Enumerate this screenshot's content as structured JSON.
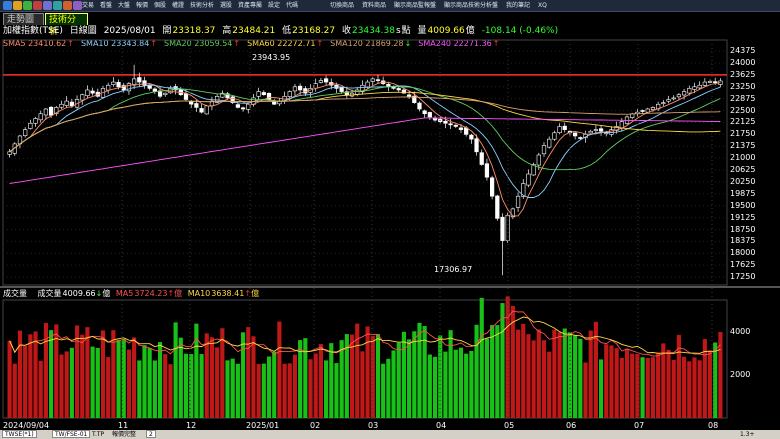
{
  "toolbar": {
    "menu": [
      "交易",
      "看盤",
      "大盤",
      "報價",
      "個股",
      "權證",
      "技術分析",
      "選股",
      "資產專屬",
      "設定",
      "代碼"
    ],
    "right_menu": [
      "切換商品",
      "資料商品",
      "顯示商品監報盤",
      "顯示商品技術分析盤",
      "我的筆記",
      "XQ"
    ]
  },
  "tabs": {
    "trend": "走勢圖",
    "technical": "技術分析"
  },
  "info": {
    "name": "加權指數(TSE)",
    "period": "日線圖",
    "date": "2025/08/01",
    "open_label": "開",
    "open": "23318.37",
    "high_label": "高",
    "high": "23484.21",
    "low_label": "低",
    "low": "23168.27",
    "close_label": "收",
    "close": "23434.38",
    "s": "s",
    "unit": "點",
    "vol_label": "量",
    "volume": "4009.66",
    "vol_unit": "億",
    "change": "-108.14 (-0.46%)"
  },
  "sma": [
    {
      "label": "SMA5",
      "value": "23410.62",
      "arrow": "↑",
      "arrow_color": "#ff3030",
      "color": "#ff8c6c"
    },
    {
      "label": "SMA10",
      "value": "23343.84",
      "arrow": "↑",
      "arrow_color": "#ff3030",
      "color": "#8ccfff"
    },
    {
      "label": "SMA20",
      "value": "23059.54",
      "arrow": "↑",
      "arrow_color": "#ff3030",
      "color": "#5fd05f"
    },
    {
      "label": "SMA60",
      "value": "22272.71",
      "arrow": "↑",
      "arrow_color": "#ff3030",
      "color": "#ffd740"
    },
    {
      "label": "SMA120",
      "value": "21869.28",
      "arrow": "↓",
      "arrow_color": "#30ff30",
      "color": "#d8a070"
    },
    {
      "label": "SMA240",
      "value": "22271.36",
      "arrow": "↑",
      "arrow_color": "#ff3030",
      "color": "#ff55ff"
    }
  ],
  "price_axis": [
    "24375",
    "24000",
    "23625",
    "23250",
    "22875",
    "22500",
    "22125",
    "21750",
    "21375",
    "21000",
    "20625",
    "20250",
    "19875",
    "19500",
    "19125",
    "18750",
    "18375",
    "18000",
    "17625",
    "17250"
  ],
  "annotations": {
    "high": "23943.95",
    "low": "17306.97"
  },
  "volume_legend": {
    "title": "成交量",
    "label": "成交量",
    "value": "4009.66",
    "arrow": "↓",
    "unit": "億",
    "ma5_label": "MA5",
    "ma5": "3724.23",
    "ma5_arrow": "↑",
    "ma5_unit": "億",
    "ma10_label": "MA10",
    "ma10": "3638.41",
    "ma10_arrow": "↑",
    "ma10_unit": "億"
  },
  "volume_axis": [
    "4000",
    "2000"
  ],
  "x_axis": [
    "2024/09/04",
    "11",
    "12",
    "2025/01",
    "02",
    "03",
    "04",
    "05",
    "06",
    "07",
    "08"
  ],
  "colors": {
    "up": "#ff2020",
    "down": "#20ff20",
    "resistance": "#ff3030",
    "grid": "#555555"
  },
  "status": {
    "a": "TWSE(*1)",
    "b": "TW/FSE-01",
    "c": "T.TP",
    "d": "報價完整",
    "e": "2",
    "f": "1.3+"
  },
  "chart_data": {
    "type": "candlestick",
    "ylim": [
      17000,
      24600
    ],
    "resistance": 23625,
    "dates_span": [
      "2024/09/04",
      "2025/08/01"
    ],
    "close": [
      21200,
      21450,
      21700,
      21900,
      22100,
      22250,
      22400,
      22550,
      22350,
      22600,
      22700,
      22800,
      22650,
      22850,
      23000,
      23150,
      23050,
      22950,
      23200,
      23300,
      23400,
      23250,
      23150,
      23350,
      23500,
      23400,
      23300,
      23200,
      23100,
      22950,
      23050,
      23200,
      23150,
      23000,
      22850,
      22700,
      22600,
      22450,
      22650,
      22800,
      22950,
      23050,
      22900,
      22750,
      22600,
      22550,
      22700,
      22900,
      23100,
      23000,
      22850,
      22700,
      22800,
      22950,
      23100,
      23250,
      23150,
      23050,
      23200,
      23350,
      23450,
      23400,
      23300,
      23200,
      23100,
      23000,
      23050,
      23150,
      23300,
      23400,
      23500,
      23450,
      23350,
      23250,
      23200,
      23150,
      23050,
      22950,
      22750,
      22550,
      22400,
      22300,
      22200,
      22150,
      22100,
      22050,
      22000,
      21900,
      21750,
      21600,
      21200,
      20800,
      20400,
      19800,
      19100,
      18400,
      19200,
      19400,
      19800,
      20200,
      20500,
      20800,
      21100,
      21400,
      21600,
      21800,
      22000,
      21900,
      21800,
      21700,
      21650,
      21750,
      21850,
      21900,
      21850,
      21800,
      21900,
      22000,
      22150,
      22300,
      22400,
      22450,
      22500,
      22550,
      22600,
      22700,
      22750,
      22850,
      22900,
      23000,
      23100,
      23200,
      23250,
      23300,
      23400,
      23420,
      23380,
      23434
    ]
  }
}
